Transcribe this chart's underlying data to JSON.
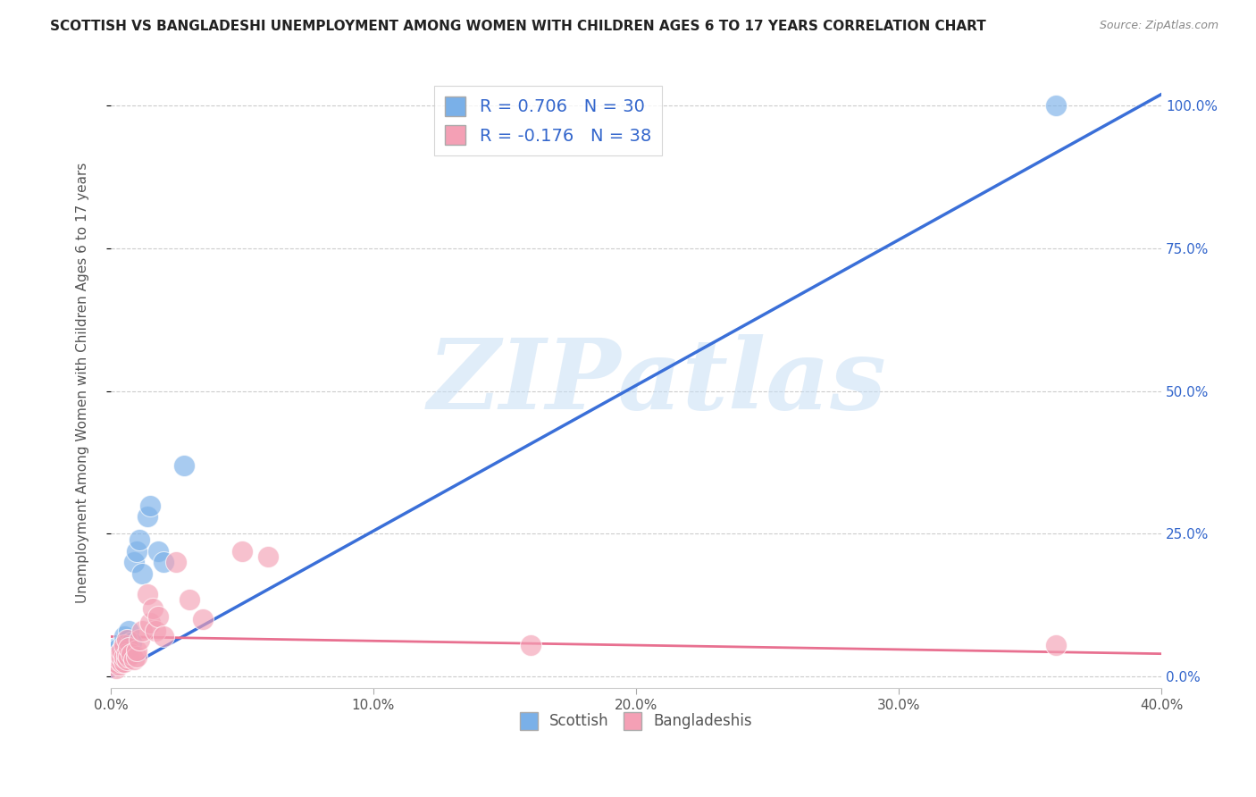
{
  "title": "SCOTTISH VS BANGLADESHI UNEMPLOYMENT AMONG WOMEN WITH CHILDREN AGES 6 TO 17 YEARS CORRELATION CHART",
  "source": "Source: ZipAtlas.com",
  "ylabel": "Unemployment Among Women with Children Ages 6 to 17 years",
  "xlim": [
    0.0,
    0.4
  ],
  "ylim": [
    -0.02,
    1.05
  ],
  "xticks": [
    0.0,
    0.1,
    0.2,
    0.3,
    0.4
  ],
  "xticklabels": [
    "0.0%",
    "10.0%",
    "20.0%",
    "30.0%",
    "40.0%"
  ],
  "yticks": [
    0.0,
    0.25,
    0.5,
    0.75,
    1.0
  ],
  "yticklabels": [
    "0.0%",
    "25.0%",
    "50.0%",
    "75.0%",
    "100.0%"
  ],
  "title_color": "#222222",
  "source_color": "#888888",
  "grid_color": "#cccccc",
  "scottish_color": "#7ab0e8",
  "bangladeshi_color": "#f4a0b5",
  "scottish_line_color": "#3a6fd8",
  "bangladeshi_line_color": "#e87090",
  "legend_scottish_R": "0.706",
  "legend_scottish_N": "30",
  "legend_bangladeshi_R": "-0.176",
  "legend_bangladeshi_N": "38",
  "legend_text_color": "#3366cc",
  "watermark": "ZIPatlas",
  "scottish_x": [
    0.001,
    0.001,
    0.001,
    0.002,
    0.002,
    0.002,
    0.003,
    0.003,
    0.003,
    0.003,
    0.004,
    0.004,
    0.005,
    0.005,
    0.005,
    0.006,
    0.006,
    0.007,
    0.007,
    0.008,
    0.009,
    0.01,
    0.011,
    0.012,
    0.014,
    0.015,
    0.018,
    0.02,
    0.028,
    0.36
  ],
  "scottish_y": [
    0.02,
    0.03,
    0.04,
    0.025,
    0.035,
    0.05,
    0.03,
    0.035,
    0.04,
    0.05,
    0.035,
    0.045,
    0.04,
    0.06,
    0.07,
    0.045,
    0.055,
    0.065,
    0.08,
    0.06,
    0.2,
    0.22,
    0.24,
    0.18,
    0.28,
    0.3,
    0.22,
    0.2,
    0.37,
    1.0
  ],
  "bangladeshi_x": [
    0.001,
    0.001,
    0.002,
    0.002,
    0.002,
    0.003,
    0.003,
    0.003,
    0.004,
    0.004,
    0.004,
    0.005,
    0.005,
    0.005,
    0.006,
    0.006,
    0.006,
    0.007,
    0.007,
    0.008,
    0.009,
    0.01,
    0.01,
    0.011,
    0.012,
    0.014,
    0.015,
    0.016,
    0.017,
    0.018,
    0.02,
    0.025,
    0.03,
    0.035,
    0.05,
    0.06,
    0.16,
    0.36
  ],
  "bangladeshi_y": [
    0.02,
    0.025,
    0.015,
    0.025,
    0.03,
    0.02,
    0.03,
    0.04,
    0.025,
    0.035,
    0.045,
    0.025,
    0.035,
    0.055,
    0.03,
    0.04,
    0.065,
    0.035,
    0.05,
    0.04,
    0.03,
    0.035,
    0.045,
    0.065,
    0.08,
    0.145,
    0.095,
    0.12,
    0.08,
    0.105,
    0.07,
    0.2,
    0.135,
    0.1,
    0.22,
    0.21,
    0.055,
    0.055
  ],
  "scottish_line_x": [
    0.0,
    0.4
  ],
  "scottish_line_y": [
    0.0,
    1.02
  ],
  "bangladeshi_line_x": [
    0.0,
    0.4
  ],
  "bangladeshi_line_y": [
    0.07,
    0.04
  ]
}
